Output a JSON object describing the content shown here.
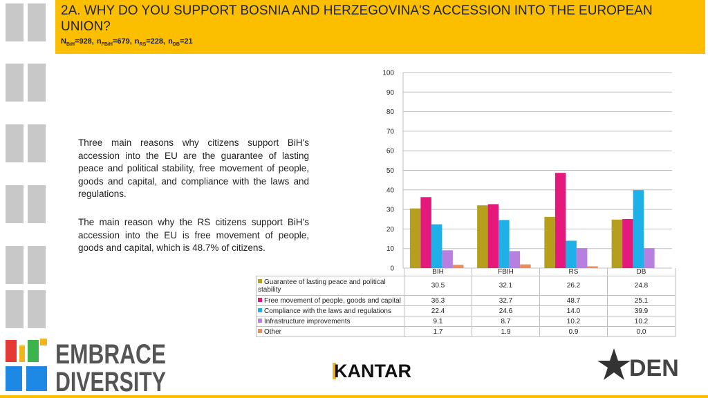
{
  "header": {
    "title": "2A. WHY DO YOU SUPPORT BOSNIA AND HERZEGOVINA'S ACCESSION INTO THE EUROPEAN UNION?",
    "sample": [
      {
        "symbol": "N",
        "subscript": "BiH",
        "text": "=928,"
      },
      {
        "symbol": "n",
        "subscript": "FBiH",
        "text": "=679,"
      },
      {
        "symbol": "n",
        "subscript": "RS",
        "text": "=228,"
      },
      {
        "symbol": "n",
        "subscript": "DB",
        "text": "=21"
      }
    ]
  },
  "paragraphs": [
    "Three main reasons why citizens support BiH's accession into the EU are the guarantee of lasting peace and political stability, free movement of people, goods and capital, and compliance with the laws and regulations.",
    "The main reason why the RS citizens support BiH's accession into the EU is free movement of people, goods and capital, which is 48.7% of citizens."
  ],
  "chart_data": {
    "type": "bar",
    "categories": [
      "BIH",
      "FBIH",
      "RS",
      "DB"
    ],
    "ylim": [
      0,
      100
    ],
    "yticks": [
      0,
      10,
      20,
      30,
      40,
      50,
      60,
      70,
      80,
      90,
      100
    ],
    "grid": true,
    "series": [
      {
        "name": "Guarantee of lasting peace and political stability",
        "color": "#b59f1c",
        "values": [
          30.5,
          32.1,
          26.2,
          24.8
        ],
        "value_labels": [
          "30.5",
          "32.1",
          "26.2",
          "24.8"
        ]
      },
      {
        "name": "Free movement of people, goods and capital",
        "color": "#e5197c",
        "values": [
          36.3,
          32.7,
          48.7,
          25.1
        ],
        "value_labels": [
          "36.3",
          "32.7",
          "48.7",
          "25.1"
        ]
      },
      {
        "name": "Compliance with the laws and regulations",
        "color": "#1eb0e6",
        "values": [
          22.4,
          24.6,
          14.0,
          39.9
        ],
        "value_labels": [
          "22.4",
          "24.6",
          "14.0",
          "39.9"
        ]
      },
      {
        "name": "Infrastructure improvements",
        "color": "#b67fe0",
        "values": [
          9.1,
          8.7,
          10.2,
          10.2
        ],
        "value_labels": [
          "9.1",
          "8.7",
          "10.2",
          "10.2"
        ]
      },
      {
        "name": "Other",
        "color": "#f08c5a",
        "values": [
          1.7,
          1.9,
          0.9,
          0.0
        ],
        "value_labels": [
          "1.7",
          "1.9",
          "0.9",
          "0.0"
        ]
      }
    ]
  },
  "logos": {
    "embrace": "EMBRACE",
    "diversity": "DIVERSITY",
    "kantar": "KANTAR",
    "den": "DEN"
  }
}
